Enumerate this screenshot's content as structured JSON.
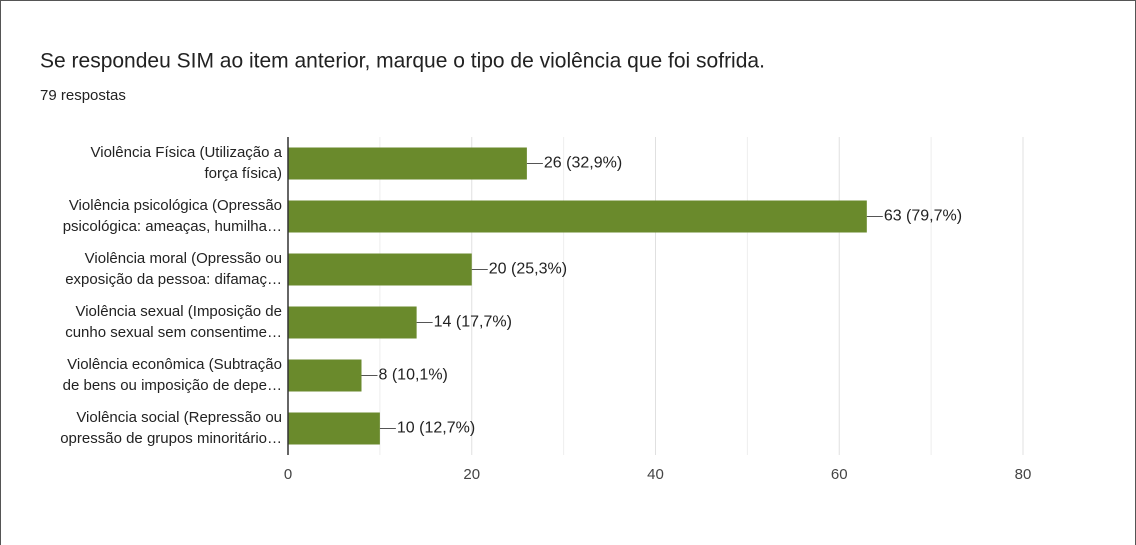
{
  "chart_data": {
    "type": "bar",
    "orientation": "horizontal",
    "title": "Se respondeu SIM ao item anterior, marque o tipo de violência que foi sofrida.",
    "subtitle": "79 respostas",
    "categories": [
      [
        "Violência Física (Utilização a",
        "força física)"
      ],
      [
        "Violência psicológica (Opressão",
        "psicológica: ameaças, humilha…"
      ],
      [
        "Violência moral (Opressão ou",
        "exposição da pessoa: difamaç…"
      ],
      [
        "Violência sexual (Imposição de",
        "cunho sexual sem consentime…"
      ],
      [
        "Violência econômica (Subtração",
        "de bens ou imposição de depe…"
      ],
      [
        "Violência social (Repressão ou",
        "opressão de grupos minoritário…"
      ]
    ],
    "values": [
      26,
      63,
      20,
      14,
      8,
      10
    ],
    "value_labels": [
      "26 (32,9%)",
      "63 (79,7%)",
      "20 (25,3%)",
      "14 (17,7%)",
      "8 (10,1%)",
      "10 (12,7%)"
    ],
    "color": "#6a8a2c",
    "xlim": [
      0,
      80
    ],
    "xticks": [
      0,
      20,
      40,
      60,
      80
    ],
    "grid": true
  }
}
